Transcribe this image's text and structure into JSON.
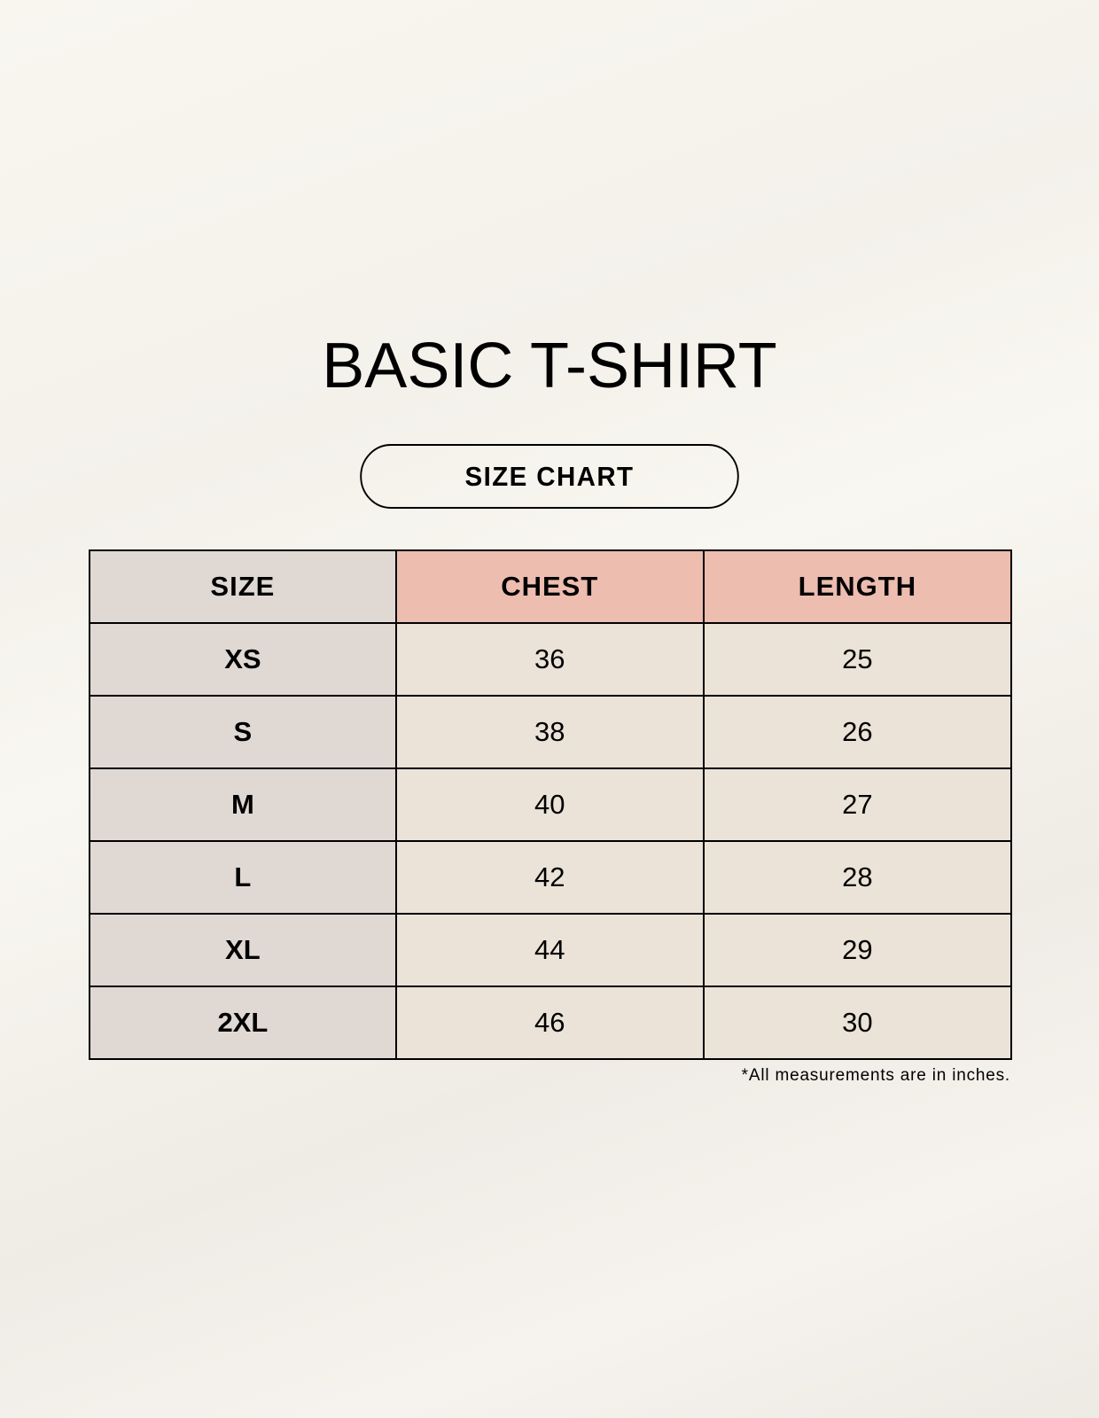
{
  "title": "BASIC T-SHIRT",
  "subtitle": "SIZE CHART",
  "table": {
    "headers": [
      "SIZE",
      "CHEST",
      "LENGTH"
    ],
    "rows": [
      [
        "XS",
        "36",
        "25"
      ],
      [
        "S",
        "38",
        "26"
      ],
      [
        "M",
        "40",
        "27"
      ],
      [
        "L",
        "42",
        "28"
      ],
      [
        "XL",
        "44",
        "29"
      ],
      [
        "2XL",
        "46",
        "30"
      ]
    ]
  },
  "footnote": "*All measurements are in inches.",
  "colors": {
    "size_column": "#e0d9d3",
    "header_accent": "#edbdb0",
    "value_cells": "#ebe3d8"
  }
}
